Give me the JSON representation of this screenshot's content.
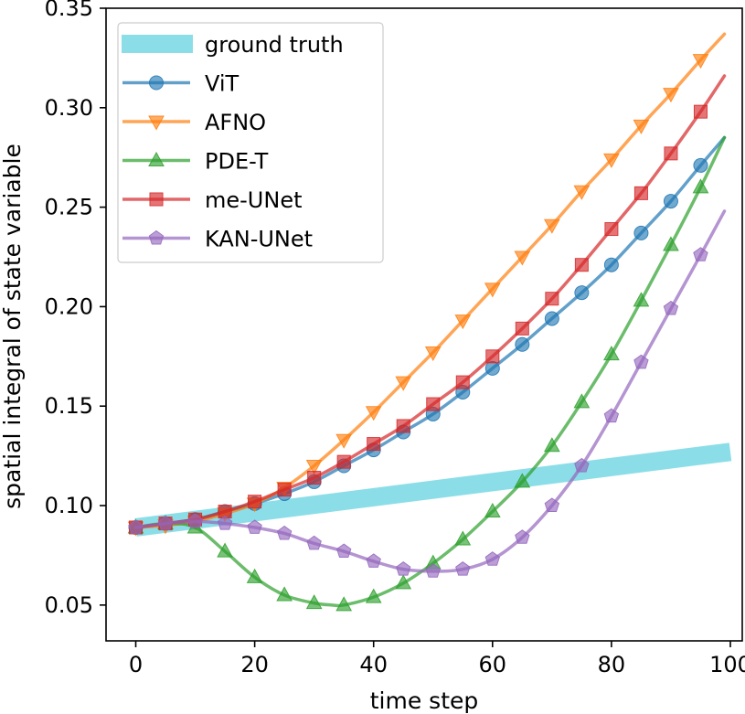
{
  "chart_data": {
    "type": "line",
    "title": "",
    "xlabel": "time step",
    "ylabel": "spatial integral of state variable",
    "xlim": [
      -5,
      102
    ],
    "ylim": [
      0.032,
      0.35
    ],
    "xticks": [
      0,
      20,
      40,
      60,
      80,
      100
    ],
    "xtick_labels": [
      "0",
      "20",
      "40",
      "60",
      "80",
      "100"
    ],
    "yticks": [
      0.05,
      0.1,
      0.15,
      0.2,
      0.25,
      0.3,
      0.35
    ],
    "ytick_labels": [
      "0.05",
      "0.10",
      "0.15",
      "0.20",
      "0.25",
      "0.30",
      "0.35"
    ],
    "legend_position": "top-left",
    "marker_x": [
      0,
      5,
      10,
      15,
      20,
      25,
      30,
      35,
      40,
      45,
      50,
      55,
      60,
      65,
      70,
      75,
      80,
      85,
      90,
      95
    ],
    "series": [
      {
        "name": "ground truth",
        "color": "#17becf",
        "style": "band",
        "x": [
          0,
          100
        ],
        "values": [
          0.089,
          0.127
        ]
      },
      {
        "name": "ViT",
        "color": "#1f77b4",
        "marker": "circle",
        "x": [
          0,
          5,
          10,
          15,
          20,
          25,
          30,
          35,
          40,
          45,
          50,
          55,
          60,
          65,
          70,
          75,
          80,
          85,
          90,
          95,
          99
        ],
        "values": [
          0.089,
          0.091,
          0.093,
          0.097,
          0.101,
          0.106,
          0.112,
          0.12,
          0.128,
          0.137,
          0.146,
          0.157,
          0.169,
          0.181,
          0.194,
          0.207,
          0.221,
          0.237,
          0.253,
          0.271,
          0.285
        ]
      },
      {
        "name": "AFNO",
        "color": "#ff7f0e",
        "marker": "triangle-down",
        "x": [
          0,
          5,
          10,
          15,
          20,
          25,
          30,
          35,
          40,
          45,
          50,
          55,
          60,
          65,
          70,
          75,
          80,
          85,
          90,
          95,
          99
        ],
        "values": [
          0.089,
          0.09,
          0.092,
          0.096,
          0.101,
          0.109,
          0.12,
          0.133,
          0.147,
          0.162,
          0.177,
          0.193,
          0.209,
          0.225,
          0.241,
          0.258,
          0.274,
          0.291,
          0.307,
          0.324,
          0.337
        ]
      },
      {
        "name": "PDE-T",
        "color": "#2ca02c",
        "marker": "triangle-up",
        "x": [
          0,
          5,
          10,
          15,
          20,
          25,
          30,
          33,
          35,
          40,
          45,
          50,
          55,
          60,
          65,
          70,
          75,
          80,
          85,
          90,
          95,
          99
        ],
        "values": [
          0.089,
          0.091,
          0.089,
          0.077,
          0.064,
          0.055,
          0.051,
          0.05,
          0.05,
          0.054,
          0.061,
          0.071,
          0.083,
          0.097,
          0.112,
          0.13,
          0.152,
          0.176,
          0.203,
          0.231,
          0.26,
          0.285
        ]
      },
      {
        "name": "me-UNet",
        "color": "#d62728",
        "marker": "square",
        "x": [
          0,
          5,
          10,
          15,
          20,
          25,
          30,
          35,
          40,
          45,
          50,
          55,
          60,
          65,
          70,
          75,
          80,
          85,
          90,
          95,
          99
        ],
        "values": [
          0.089,
          0.091,
          0.093,
          0.097,
          0.102,
          0.108,
          0.114,
          0.122,
          0.131,
          0.14,
          0.151,
          0.162,
          0.175,
          0.189,
          0.204,
          0.221,
          0.239,
          0.257,
          0.277,
          0.298,
          0.316
        ]
      },
      {
        "name": "KAN-UNet",
        "color": "#9467bd",
        "marker": "pentagon",
        "x": [
          0,
          5,
          10,
          15,
          20,
          25,
          30,
          35,
          40,
          45,
          50,
          55,
          60,
          65,
          70,
          75,
          80,
          85,
          90,
          95,
          99
        ],
        "values": [
          0.089,
          0.091,
          0.092,
          0.091,
          0.089,
          0.086,
          0.081,
          0.077,
          0.072,
          0.068,
          0.067,
          0.068,
          0.073,
          0.084,
          0.1,
          0.12,
          0.145,
          0.172,
          0.199,
          0.226,
          0.248
        ]
      }
    ]
  }
}
